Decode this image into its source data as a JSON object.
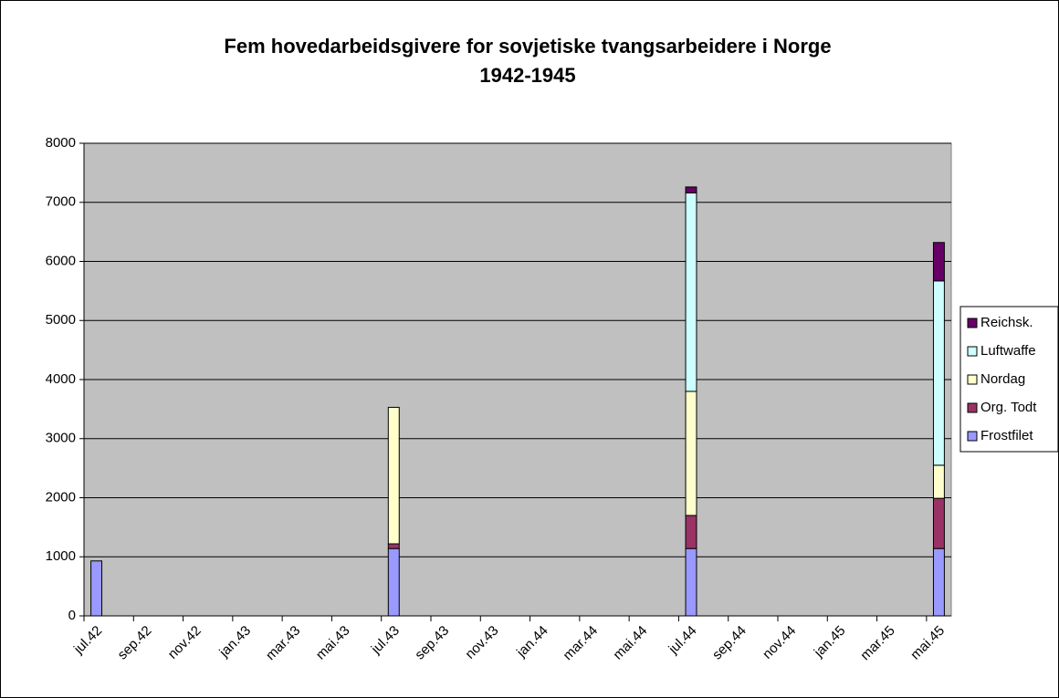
{
  "chart_data": {
    "type": "stacked_bar",
    "title": [
      "Fem hovedarbeidsgivere for sovjetiske tvangsarbeidere i Norge",
      "1942-1945"
    ],
    "categories": [
      "jul.42",
      null,
      "sep.42",
      null,
      "nov.42",
      null,
      "jan.43",
      null,
      "mar.43",
      null,
      "mai.43",
      null,
      "jul.43",
      null,
      "sep.43",
      null,
      "nov.43",
      null,
      "jan.44",
      null,
      "mar.44",
      null,
      "mai.44",
      null,
      "jul.44",
      null,
      "sep.44",
      null,
      "nov.44",
      null,
      "jan.45",
      null,
      "mar.45",
      null,
      "mai.45"
    ],
    "series": [
      {
        "name": "Frostfilet",
        "color": "#9999ff",
        "values": [
          930,
          null,
          null,
          null,
          null,
          null,
          null,
          null,
          null,
          null,
          null,
          null,
          1140,
          null,
          null,
          null,
          null,
          null,
          null,
          null,
          null,
          null,
          null,
          null,
          1140,
          null,
          null,
          null,
          null,
          null,
          null,
          null,
          null,
          null,
          1140
        ]
      },
      {
        "name": "Org. Todt",
        "color": "#993366",
        "values": [
          null,
          null,
          null,
          null,
          null,
          null,
          null,
          null,
          null,
          null,
          null,
          null,
          80,
          null,
          null,
          null,
          null,
          null,
          null,
          null,
          null,
          null,
          null,
          null,
          560,
          null,
          null,
          null,
          null,
          null,
          null,
          null,
          null,
          null,
          850
        ]
      },
      {
        "name": "Nordag",
        "color": "#ffffcc",
        "values": [
          null,
          null,
          null,
          null,
          null,
          null,
          null,
          null,
          null,
          null,
          null,
          null,
          2310,
          null,
          null,
          null,
          null,
          null,
          null,
          null,
          null,
          null,
          null,
          null,
          2100,
          null,
          null,
          null,
          null,
          null,
          null,
          null,
          null,
          null,
          560
        ]
      },
      {
        "name": "Luftwaffe",
        "color": "#ccffff",
        "values": [
          null,
          null,
          null,
          null,
          null,
          null,
          null,
          null,
          null,
          null,
          null,
          null,
          null,
          null,
          null,
          null,
          null,
          null,
          null,
          null,
          null,
          null,
          null,
          null,
          3360,
          null,
          null,
          null,
          null,
          null,
          null,
          null,
          null,
          null,
          3120
        ]
      },
      {
        "name": "Reichsk.",
        "color": "#660066",
        "values": [
          null,
          null,
          null,
          null,
          null,
          null,
          null,
          null,
          null,
          null,
          null,
          null,
          null,
          null,
          null,
          null,
          null,
          null,
          null,
          null,
          null,
          null,
          null,
          null,
          100,
          null,
          null,
          null,
          null,
          null,
          null,
          null,
          null,
          null,
          650
        ]
      }
    ],
    "ylim": [
      0,
      8000
    ],
    "yticks": [
      0,
      1000,
      2000,
      3000,
      4000,
      5000,
      6000,
      7000,
      8000
    ],
    "grid": true,
    "legend": "right",
    "plot_background": "#c0c0c0"
  }
}
